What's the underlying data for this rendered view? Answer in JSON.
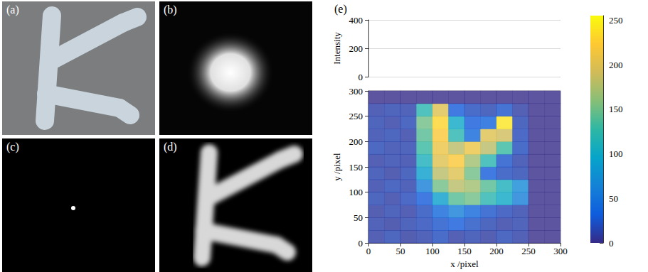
{
  "panels": [
    {
      "label": "(a)"
    },
    {
      "label": "(b)"
    },
    {
      "label": "(c)"
    },
    {
      "label": "(d)"
    }
  ],
  "chart_data": {
    "type": "heatmap",
    "label": "(e)",
    "x_label": "x /pixel",
    "y_label": "y /pixel",
    "z_label": "Intensity",
    "xlim": [
      0,
      300
    ],
    "xticks": [
      0,
      50,
      100,
      150,
      200,
      250,
      300
    ],
    "ylim": [
      0,
      300
    ],
    "yticks": [
      0,
      50,
      100,
      150,
      200,
      250,
      300
    ],
    "zlim": [
      0,
      400
    ],
    "zticks": [
      0,
      200,
      400
    ],
    "grid": true,
    "cells": {
      "x": [
        12.5,
        37.5,
        62.5,
        87.5,
        112.5,
        137.5,
        162.5,
        187.5,
        212.5,
        237.5,
        262.5,
        287.5
      ],
      "y": [
        12.5,
        37.5,
        62.5,
        87.5,
        112.5,
        137.5,
        162.5,
        187.5,
        212.5,
        237.5,
        262.5,
        287.5
      ],
      "values": [
        [
          10,
          15,
          8,
          12,
          20,
          10,
          14,
          9,
          16,
          11,
          0,
          0
        ],
        [
          12,
          8,
          14,
          18,
          25,
          30,
          22,
          15,
          10,
          13,
          0,
          0
        ],
        [
          9,
          14,
          10,
          20,
          40,
          60,
          40,
          25,
          18,
          12,
          0,
          0
        ],
        [
          15,
          10,
          18,
          30,
          90,
          140,
          150,
          120,
          100,
          60,
          0,
          0
        ],
        [
          11,
          16,
          12,
          60,
          150,
          180,
          170,
          140,
          110,
          70,
          0,
          0
        ],
        [
          14,
          9,
          15,
          90,
          180,
          200,
          150,
          30,
          20,
          15,
          0,
          0
        ],
        [
          10,
          13,
          11,
          110,
          200,
          220,
          170,
          120,
          25,
          12,
          0,
          0
        ],
        [
          16,
          12,
          14,
          130,
          210,
          180,
          210,
          180,
          130,
          20,
          0,
          0
        ],
        [
          12,
          15,
          10,
          140,
          220,
          120,
          40,
          200,
          190,
          18,
          0,
          0
        ],
        [
          14,
          10,
          16,
          150,
          230,
          100,
          30,
          35,
          240,
          15,
          0,
          0
        ],
        [
          11,
          14,
          12,
          120,
          200,
          30,
          20,
          15,
          25,
          10,
          0,
          0
        ],
        [
          0,
          0,
          0,
          0,
          0,
          0,
          0,
          0,
          0,
          0,
          0,
          0
        ]
      ]
    },
    "colorbar": {
      "range": [
        0,
        255
      ],
      "ticks": [
        0,
        50,
        100,
        150,
        200,
        250
      ],
      "colors": [
        "#352a87",
        "#0f5cdd",
        "#1481d6",
        "#06a4ca",
        "#2eb7a4",
        "#87bf77",
        "#d1bb59",
        "#fec832",
        "#f9fb0e"
      ]
    }
  }
}
